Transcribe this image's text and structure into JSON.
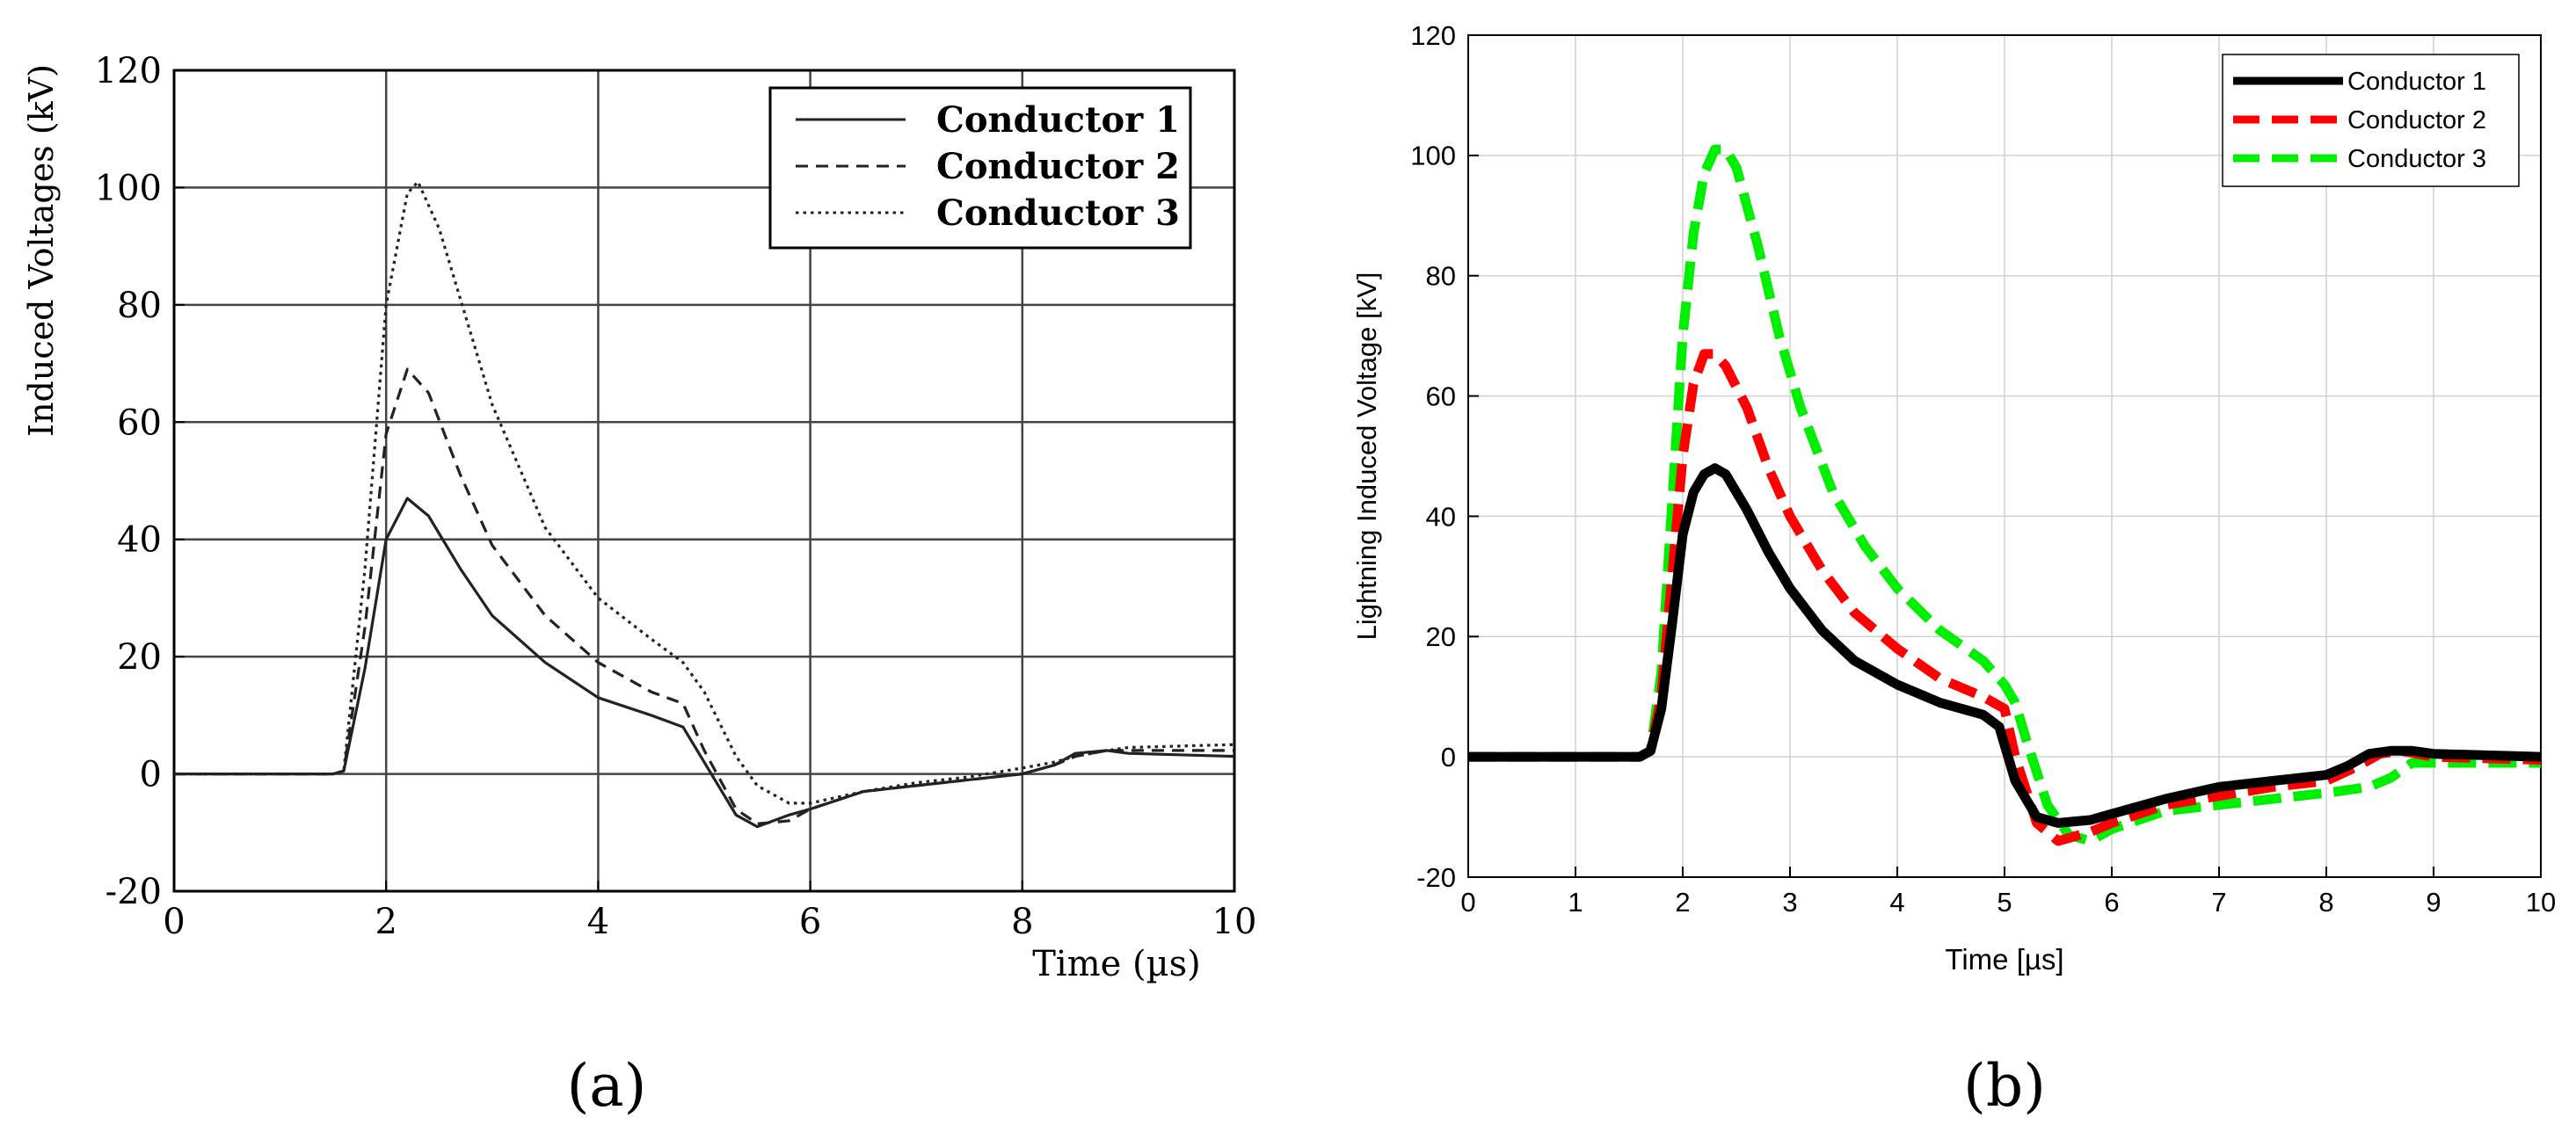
{
  "panel_labels": {
    "a": "(a)",
    "b": "(b)"
  },
  "chart_data": [
    {
      "id": "a",
      "type": "line",
      "title": "",
      "xlabel": "Time (µs)",
      "ylabel": "Induced Voltages (kV)",
      "xlim": [
        0,
        10
      ],
      "ylim": [
        -20,
        120
      ],
      "xticks": [
        0,
        2,
        4,
        6,
        8,
        10
      ],
      "yticks": [
        -20,
        0,
        20,
        40,
        60,
        80,
        100,
        120
      ],
      "grid": true,
      "legend_position": "top-right",
      "series": [
        {
          "name": "Conductor 1",
          "style": "solid",
          "color": "#222222",
          "x": [
            0,
            1.5,
            1.6,
            1.8,
            2.0,
            2.2,
            2.4,
            2.7,
            3.0,
            3.5,
            4.0,
            4.5,
            4.8,
            5.0,
            5.3,
            5.5,
            5.8,
            6.0,
            6.5,
            7.0,
            7.5,
            8.0,
            8.3,
            8.5,
            8.8,
            9.0,
            10.0
          ],
          "y": [
            0,
            0,
            0.5,
            18,
            40,
            47,
            44,
            35,
            27,
            19,
            13,
            10,
            8,
            2,
            -7,
            -9,
            -7,
            -6,
            -3,
            -2,
            -1,
            0,
            1.5,
            3.5,
            4,
            3.5,
            3
          ]
        },
        {
          "name": "Conductor 2",
          "style": "dashed",
          "color": "#222222",
          "x": [
            0,
            1.5,
            1.6,
            1.8,
            2.0,
            2.2,
            2.4,
            2.7,
            3.0,
            3.5,
            4.0,
            4.5,
            4.8,
            5.0,
            5.3,
            5.5,
            5.8,
            6.0,
            6.5,
            7.0,
            7.5,
            8.0,
            8.3,
            8.5,
            8.8,
            9.0,
            10.0
          ],
          "y": [
            0,
            0,
            0.5,
            25,
            58,
            69,
            65,
            51,
            39,
            27,
            19,
            14,
            12,
            4,
            -6,
            -8.5,
            -8,
            -6,
            -3,
            -2,
            -1,
            0,
            1.5,
            3,
            4,
            4,
            4
          ]
        },
        {
          "name": "Conductor 3",
          "style": "dotted",
          "color": "#222222",
          "x": [
            0,
            1.5,
            1.6,
            1.8,
            2.0,
            2.2,
            2.3,
            2.5,
            2.8,
            3.0,
            3.5,
            4.0,
            4.5,
            4.8,
            5.0,
            5.3,
            5.5,
            5.8,
            6.0,
            6.5,
            7.0,
            7.5,
            8.0,
            8.3,
            8.5,
            8.8,
            9.0,
            10.0
          ],
          "y": [
            0,
            0,
            0.5,
            35,
            80,
            99,
            101,
            93,
            75,
            63,
            42,
            30,
            23,
            19,
            14,
            3,
            -2,
            -5,
            -5,
            -3,
            -1.5,
            -0.5,
            1,
            2,
            3,
            4,
            4.5,
            5
          ]
        }
      ]
    },
    {
      "id": "b",
      "type": "line",
      "title": "",
      "xlabel": "Time [µs]",
      "ylabel": "Lightning Induced Voltage [kV]",
      "xlim": [
        0,
        10
      ],
      "ylim": [
        -20,
        120
      ],
      "xticks": [
        0,
        1,
        2,
        3,
        4,
        5,
        6,
        7,
        8,
        9,
        10
      ],
      "yticks": [
        -20,
        0,
        20,
        40,
        60,
        80,
        100,
        120
      ],
      "grid": true,
      "legend_position": "top-right",
      "series": [
        {
          "name": "Conductor 1",
          "style": "solid",
          "color": "#000000",
          "x": [
            0,
            1.6,
            1.7,
            1.8,
            1.9,
            2.0,
            2.1,
            2.2,
            2.3,
            2.4,
            2.6,
            2.8,
            3.0,
            3.3,
            3.6,
            4.0,
            4.4,
            4.8,
            4.95,
            5.1,
            5.3,
            5.5,
            5.8,
            6.0,
            6.5,
            7.0,
            7.5,
            8.0,
            8.2,
            8.4,
            8.6,
            8.8,
            9.0,
            10.0
          ],
          "y": [
            0,
            0,
            1,
            8,
            22,
            37,
            44,
            47,
            48,
            47,
            41,
            34,
            28,
            21,
            16,
            12,
            9,
            7,
            5,
            -4,
            -10,
            -11,
            -10.5,
            -9.5,
            -7,
            -5,
            -4,
            -3,
            -1.5,
            0.5,
            1,
            1,
            0.5,
            0
          ]
        },
        {
          "name": "Conductor 2",
          "style": "dashed",
          "color": "#ff0000",
          "x": [
            0,
            1.6,
            1.7,
            1.8,
            1.9,
            2.0,
            2.1,
            2.2,
            2.3,
            2.4,
            2.6,
            2.8,
            3.0,
            3.3,
            3.6,
            4.0,
            4.4,
            4.8,
            5.0,
            5.1,
            5.3,
            5.5,
            5.8,
            6.0,
            6.5,
            7.0,
            7.5,
            8.0,
            8.3,
            8.5,
            8.7,
            9.0,
            10.0
          ],
          "y": [
            0,
            0,
            1,
            10,
            30,
            50,
            62,
            67,
            67,
            65,
            58,
            48,
            40,
            31,
            24,
            18,
            13,
            10,
            8,
            0,
            -11,
            -14,
            -12.5,
            -11,
            -8,
            -6.5,
            -5,
            -4,
            -1.5,
            0.5,
            1,
            0,
            -0.5
          ]
        },
        {
          "name": "Conductor 3",
          "style": "dashed",
          "color": "#00ee00",
          "x": [
            0,
            1.6,
            1.7,
            1.8,
            1.9,
            2.0,
            2.1,
            2.2,
            2.3,
            2.4,
            2.5,
            2.7,
            2.9,
            3.1,
            3.4,
            3.7,
            4.0,
            4.4,
            4.8,
            5.0,
            5.1,
            5.2,
            5.4,
            5.6,
            5.8,
            6.0,
            6.5,
            7.0,
            7.5,
            8.0,
            8.4,
            8.6,
            8.8,
            9.0,
            10.0
          ],
          "y": [
            0,
            0,
            1,
            14,
            42,
            70,
            87,
            97,
            101,
            101,
            98,
            85,
            70,
            58,
            44,
            35,
            28,
            21,
            16,
            12,
            9,
            3,
            -8,
            -13,
            -14,
            -12,
            -9,
            -8,
            -7,
            -6,
            -5,
            -3.5,
            -1,
            -1,
            -1
          ]
        }
      ]
    }
  ]
}
